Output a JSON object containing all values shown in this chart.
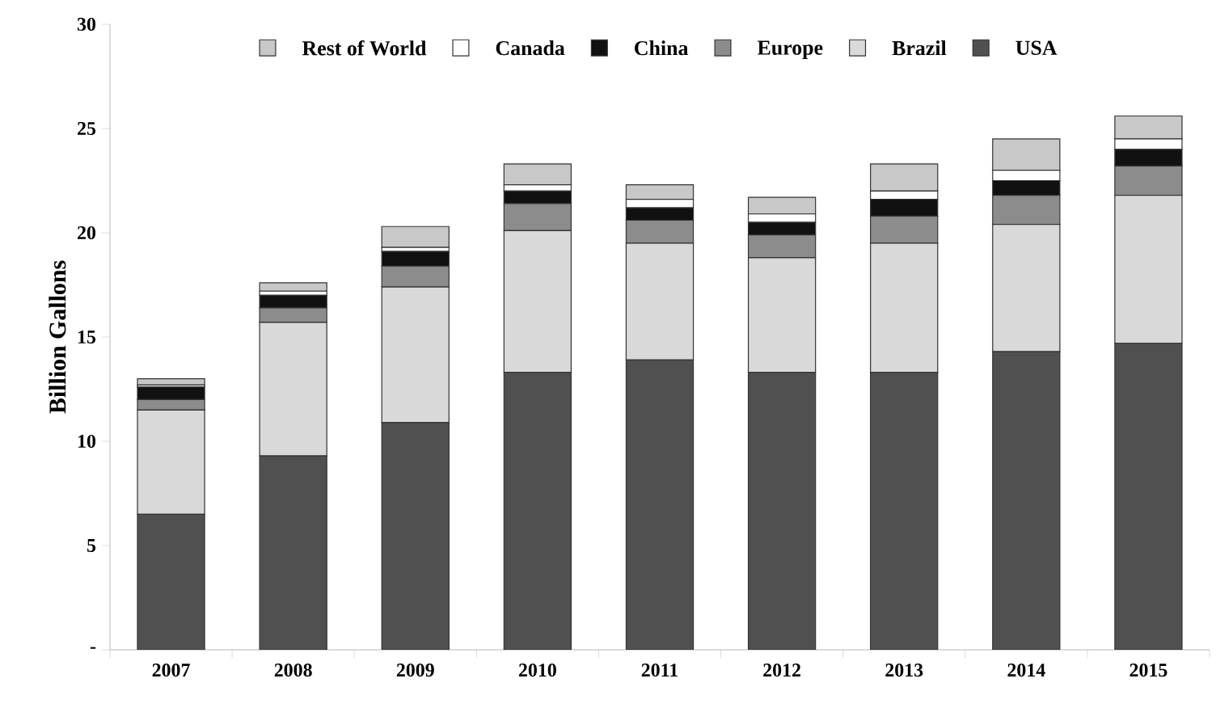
{
  "chart_data": {
    "type": "bar",
    "stacked": true,
    "ylabel": "Billion Gallons",
    "categories": [
      "2007",
      "2008",
      "2009",
      "2010",
      "2011",
      "2012",
      "2013",
      "2014",
      "2015"
    ],
    "series": [
      {
        "name": "USA",
        "color": "#505050",
        "values": [
          6.5,
          9.3,
          10.9,
          13.3,
          13.9,
          13.3,
          13.3,
          14.3,
          14.7
        ]
      },
      {
        "name": "Brazil",
        "color": "#d9d9d9",
        "values": [
          5.0,
          6.4,
          6.5,
          6.8,
          5.6,
          5.5,
          6.2,
          6.1,
          7.1
        ]
      },
      {
        "name": "Europe",
        "color": "#8c8c8c",
        "values": [
          0.5,
          0.7,
          1.0,
          1.3,
          1.1,
          1.1,
          1.3,
          1.4,
          1.4
        ]
      },
      {
        "name": "China",
        "color": "#111111",
        "values": [
          0.6,
          0.6,
          0.7,
          0.6,
          0.6,
          0.6,
          0.8,
          0.7,
          0.8
        ]
      },
      {
        "name": "Canada",
        "color": "#ffffff",
        "values": [
          0.1,
          0.2,
          0.2,
          0.3,
          0.4,
          0.4,
          0.4,
          0.5,
          0.5
        ]
      },
      {
        "name": "Rest of World",
        "color": "#c8c8c8",
        "values": [
          0.3,
          0.4,
          1.0,
          1.0,
          0.7,
          0.8,
          1.3,
          1.5,
          1.1
        ]
      }
    ],
    "ylim": [
      0,
      30
    ],
    "yticks": [
      {
        "value": 0,
        "label": "-"
      },
      5,
      10,
      15,
      20,
      25,
      30
    ],
    "legend": "top"
  }
}
